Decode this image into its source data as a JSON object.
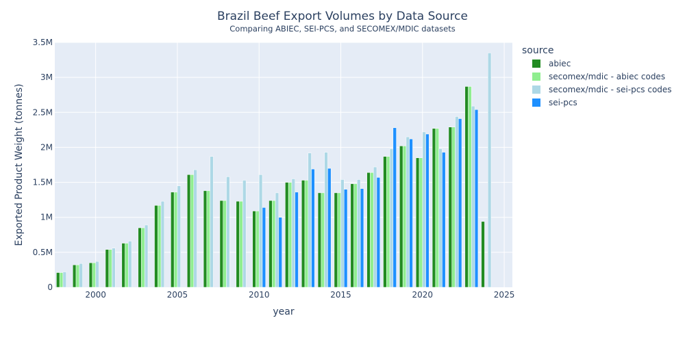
{
  "chart_data": {
    "type": "bar",
    "title": "Brazil Beef Export Volumes by Data Source",
    "subtitle": "Comparing ABIEC, SEI-PCS, and SECOMEX/MDIC datasets",
    "xlabel": "year",
    "ylabel": "Exported Product Weight (tonnes)",
    "xlim": [
      1997.5,
      2025.5
    ],
    "ylim": [
      0,
      3500000
    ],
    "xticks": [
      2000,
      2005,
      2010,
      2015,
      2020,
      2025
    ],
    "xtick_labels": [
      "2000",
      "2005",
      "2010",
      "2015",
      "2020",
      "2025"
    ],
    "yticks": [
      0,
      500000,
      1000000,
      1500000,
      2000000,
      2500000,
      3000000,
      3500000
    ],
    "ytick_labels": [
      "0",
      "0.5M",
      "1M",
      "1.5M",
      "2M",
      "2.5M",
      "3M",
      "3.5M"
    ],
    "grid": true,
    "legend": {
      "title": "source",
      "placement": "right"
    },
    "x": [
      1998,
      1999,
      2000,
      2001,
      2002,
      2003,
      2004,
      2005,
      2006,
      2007,
      2008,
      2009,
      2010,
      2011,
      2012,
      2013,
      2014,
      2015,
      2016,
      2017,
      2018,
      2019,
      2020,
      2021,
      2022,
      2023,
      2024,
      2025
    ],
    "series": [
      {
        "name": "abiec",
        "color": "#228B22",
        "values": [
          210000,
          320000,
          350000,
          540000,
          630000,
          850000,
          1170000,
          1360000,
          1610000,
          1380000,
          1240000,
          1230000,
          1090000,
          1240000,
          1500000,
          1530000,
          1350000,
          1350000,
          1480000,
          1640000,
          1870000,
          2020000,
          1850000,
          2270000,
          2290000,
          2870000,
          940000,
          null
        ]
      },
      {
        "name": "secomex/mdic - abiec codes",
        "color": "#90EE90",
        "values": [
          210000,
          320000,
          350000,
          540000,
          630000,
          850000,
          1170000,
          1360000,
          1610000,
          1380000,
          1240000,
          1230000,
          1090000,
          1240000,
          1500000,
          1530000,
          1350000,
          1350000,
          1480000,
          1640000,
          1870000,
          2020000,
          1850000,
          2270000,
          2290000,
          2870000,
          null,
          null
        ]
      },
      {
        "name": "secomex/mdic - sei-pcs codes",
        "color": "#ADD8E6",
        "values": [
          220000,
          340000,
          370000,
          560000,
          660000,
          890000,
          1230000,
          1450000,
          1680000,
          1870000,
          1580000,
          1530000,
          1610000,
          1350000,
          1550000,
          1920000,
          1930000,
          1540000,
          1540000,
          1720000,
          1980000,
          2150000,
          2220000,
          1980000,
          2440000,
          2590000,
          3350000,
          null
        ]
      },
      {
        "name": "sei-pcs",
        "color": "#1E90FF",
        "values": [
          null,
          null,
          null,
          null,
          null,
          null,
          null,
          null,
          null,
          null,
          null,
          null,
          1140000,
          1000000,
          1360000,
          1690000,
          1700000,
          1400000,
          1410000,
          1570000,
          2280000,
          2120000,
          2190000,
          1930000,
          2410000,
          2540000,
          null,
          null
        ]
      }
    ]
  }
}
